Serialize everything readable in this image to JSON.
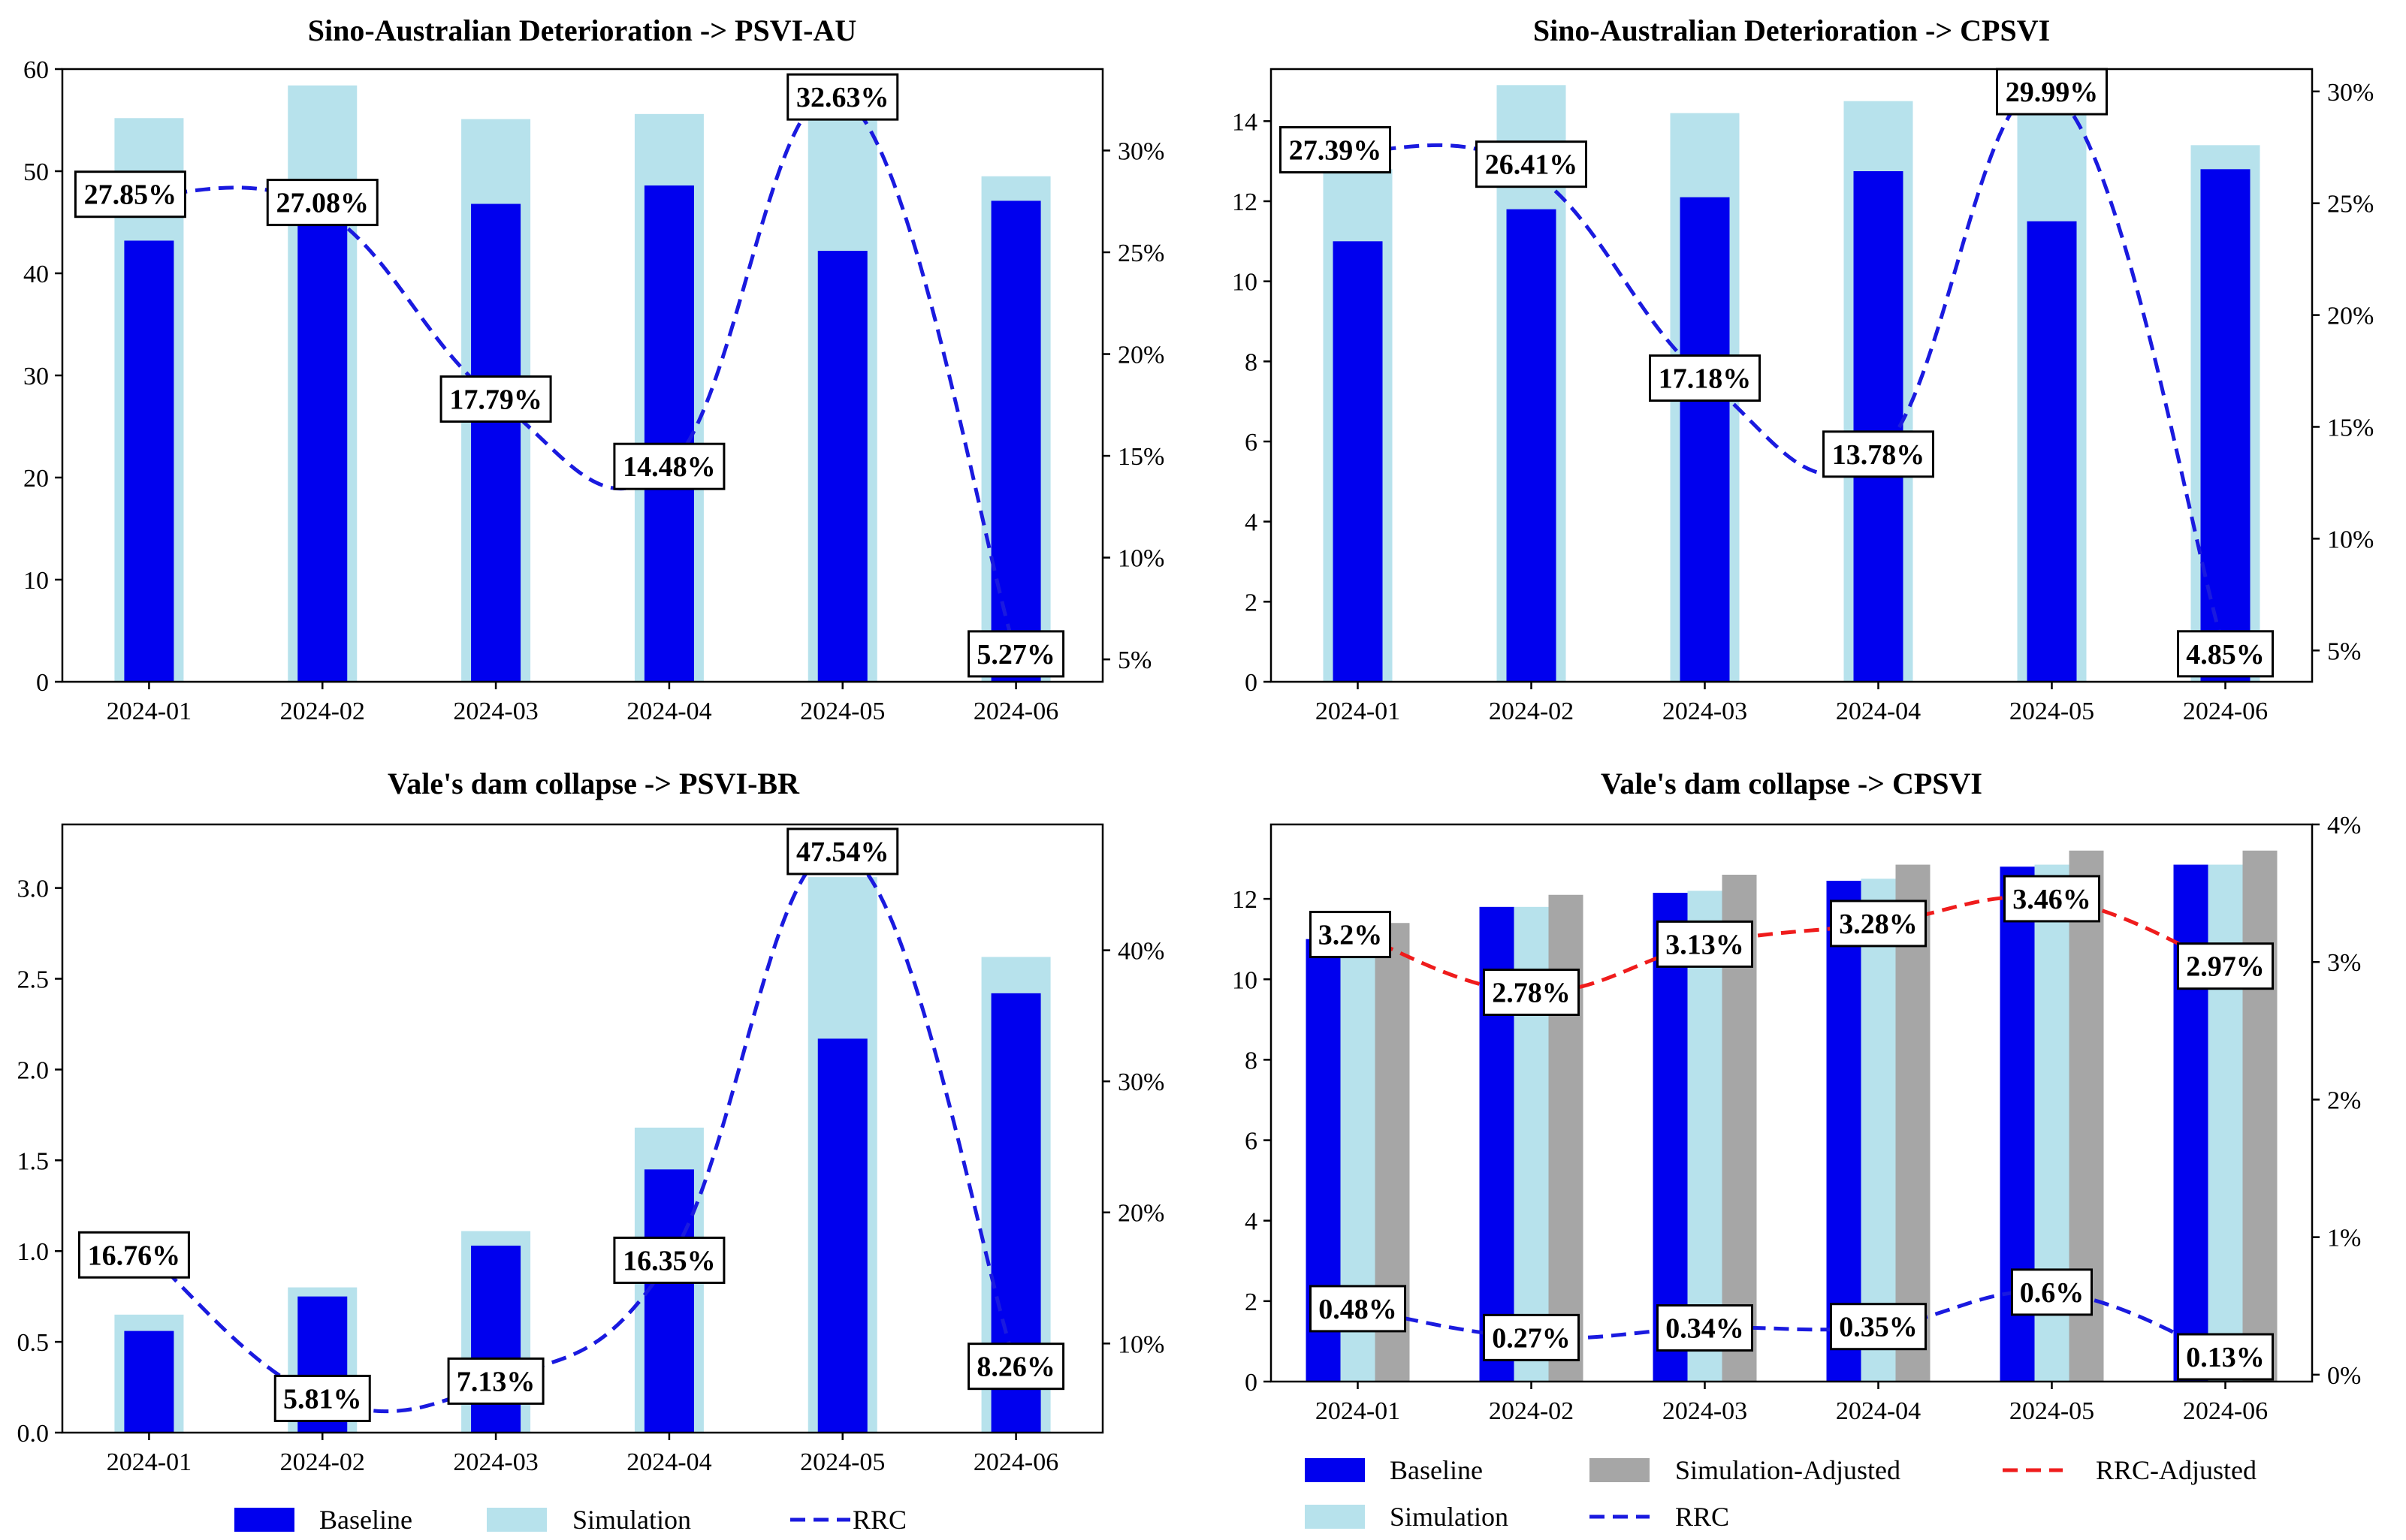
{
  "colors": {
    "baseline": "#0000ee",
    "simulation": "#b7e2ec",
    "simulation_adjusted": "#a6a6a6",
    "rrc": "#1a1adf",
    "rrc_adjusted": "#ef1c1c"
  },
  "legend_labels": {
    "baseline": "Baseline",
    "simulation": "Simulation",
    "simulation_adjusted": "Simulation-Adjusted",
    "rrc": "RRC",
    "rrc_adjusted": "RRC-Adjusted"
  },
  "chart_data": [
    {
      "type": "bar",
      "title": "Sino-Australian Deterioration -> PSVI-AU",
      "categories": [
        "2024-01",
        "2024-02",
        "2024-03",
        "2024-04",
        "2024-05",
        "2024-06"
      ],
      "series": [
        {
          "name": "Simulation",
          "values": [
            55.2,
            58.4,
            55.1,
            55.6,
            57.5,
            49.5
          ]
        },
        {
          "name": "Baseline",
          "values": [
            43.2,
            45.8,
            46.8,
            48.6,
            42.2,
            47.1
          ]
        }
      ],
      "line_series": [
        {
          "name": "RRC",
          "values": [
            27.85,
            27.08,
            17.79,
            14.48,
            32.63,
            5.27
          ]
        }
      ],
      "data_labels": [
        "27.85%",
        "27.08%",
        "17.79%",
        "14.48%",
        "32.63%",
        "5.27%"
      ],
      "ylim": [
        0,
        60
      ],
      "yticks": [
        "0",
        "10",
        "20",
        "30",
        "40",
        "50",
        "60"
      ],
      "y2lim": [
        3.9,
        34.0
      ],
      "y2ticks": [
        "5%",
        "10%",
        "15%",
        "20%",
        "25%",
        "30%"
      ]
    },
    {
      "type": "bar",
      "title": "Sino-Australian Deterioration -> CPSVI",
      "categories": [
        "2024-01",
        "2024-02",
        "2024-03",
        "2024-04",
        "2024-05",
        "2024-06"
      ],
      "series": [
        {
          "name": "Simulation",
          "values": [
            12.8,
            14.9,
            14.2,
            14.5,
            14.4,
            13.4
          ]
        },
        {
          "name": "Baseline",
          "values": [
            11.0,
            11.8,
            12.1,
            12.75,
            11.5,
            12.8
          ]
        }
      ],
      "line_series": [
        {
          "name": "RRC",
          "values": [
            27.39,
            26.41,
            17.18,
            13.78,
            29.99,
            4.85
          ]
        }
      ],
      "data_labels": [
        "27.39%",
        "26.41%",
        "17.18%",
        "13.78%",
        "29.99%",
        "4.85%"
      ],
      "ylim": [
        0,
        15.3
      ],
      "yticks": [
        "0",
        "2",
        "4",
        "6",
        "8",
        "10",
        "12",
        "14"
      ],
      "y2lim": [
        3.6,
        31.0
      ],
      "y2ticks": [
        "5%",
        "10%",
        "15%",
        "20%",
        "25%",
        "30%"
      ]
    },
    {
      "type": "bar",
      "title": "Vale's dam collapse -> PSVI-BR",
      "categories": [
        "2024-01",
        "2024-02",
        "2024-03",
        "2024-04",
        "2024-05",
        "2024-06"
      ],
      "series": [
        {
          "name": "Simulation",
          "values": [
            0.65,
            0.8,
            1.11,
            1.68,
            3.06,
            2.62
          ]
        },
        {
          "name": "Baseline",
          "values": [
            0.56,
            0.75,
            1.03,
            1.45,
            2.17,
            2.42
          ]
        }
      ],
      "line_series": [
        {
          "name": "RRC",
          "values": [
            16.76,
            5.81,
            7.13,
            16.35,
            47.54,
            8.26
          ]
        }
      ],
      "data_labels": [
        "16.76%",
        "5.81%",
        "7.13%",
        "16.35%",
        "47.54%",
        "8.26%"
      ],
      "ylim": [
        0,
        3.35
      ],
      "yticks": [
        "0.0",
        "0.5",
        "1.0",
        "1.5",
        "2.0",
        "2.5",
        "3.0"
      ],
      "y2lim": [
        3.2,
        49.6
      ],
      "y2ticks": [
        "10%",
        "20%",
        "30%",
        "40%"
      ]
    },
    {
      "type": "bar",
      "title": "Vale's dam collapse -> CPSVI",
      "categories": [
        "2024-01",
        "2024-02",
        "2024-03",
        "2024-04",
        "2024-05",
        "2024-06"
      ],
      "series": [
        {
          "name": "Baseline",
          "values": [
            11.0,
            11.8,
            12.15,
            12.45,
            12.8,
            12.85
          ]
        },
        {
          "name": "Simulation",
          "values": [
            11.05,
            11.8,
            12.2,
            12.5,
            12.85,
            12.85
          ]
        },
        {
          "name": "Simulation-Adjusted",
          "values": [
            11.4,
            12.1,
            12.6,
            12.85,
            13.2,
            13.2
          ]
        }
      ],
      "line_series": [
        {
          "name": "RRC",
          "values": [
            0.48,
            0.27,
            0.34,
            0.35,
            0.6,
            0.13
          ]
        },
        {
          "name": "RRC-Adjusted",
          "values": [
            3.2,
            2.78,
            3.13,
            3.28,
            3.46,
            2.97
          ]
        }
      ],
      "data_labels_rrc": [
        "0.48%",
        "0.27%",
        "0.34%",
        "0.35%",
        "0.6%",
        "0.13%"
      ],
      "data_labels_adjusted": [
        "3.2%",
        "2.78%",
        "3.13%",
        "3.28%",
        "3.46%",
        "2.97%"
      ],
      "ylim": [
        0,
        13.85
      ],
      "yticks": [
        "0",
        "2",
        "4",
        "6",
        "8",
        "10",
        "12"
      ],
      "y2lim": [
        -0.05,
        4.0
      ],
      "y2ticks": [
        "0%",
        "1%",
        "2%",
        "3%",
        "4%"
      ]
    }
  ]
}
